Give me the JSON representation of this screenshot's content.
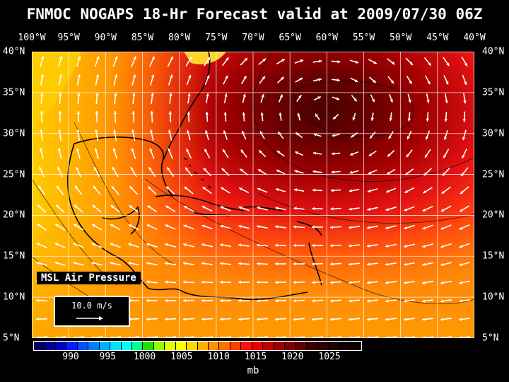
{
  "title": "FNMOC NOGAPS 18-Hr Forecast valid at 2009/07/30 06Z",
  "variable_label": "MSL Air Pressure",
  "vector_scale_label": "10.0 m/s",
  "unit_label": "mb",
  "longitude_labels": [
    "100°W",
    "95°W",
    "90°W",
    "85°W",
    "80°W",
    "75°W",
    "70°W",
    "65°W",
    "60°W",
    "55°W",
    "50°W",
    "45°W",
    "40°W"
  ],
  "latitude_labels": [
    "40°N",
    "35°N",
    "30°N",
    "25°N",
    "20°N",
    "15°N",
    "10°N",
    "5°N"
  ],
  "colorbar": {
    "tick_labels": [
      "990",
      "995",
      "1000",
      "1005",
      "1010",
      "1015",
      "1020",
      "1025"
    ],
    "colors": [
      "#000060",
      "#000090",
      "#0000c8",
      "#0020ff",
      "#0050ff",
      "#0080ff",
      "#00b0ff",
      "#00e0ff",
      "#00ffff",
      "#00ff90",
      "#20e000",
      "#90ff00",
      "#e0ff00",
      "#ffff00",
      "#ffd800",
      "#ffb000",
      "#ff9000",
      "#ff7000",
      "#ff4000",
      "#ff1010",
      "#e80000",
      "#c00000",
      "#a00000",
      "#800000",
      "#600000",
      "#400000",
      "#300000",
      "#200000",
      "#140000",
      "#0a0000"
    ]
  },
  "colors": {
    "background": "#000000",
    "grid": "#ffffff",
    "coast": "#000000",
    "wind_arrow": "#ffffff"
  }
}
